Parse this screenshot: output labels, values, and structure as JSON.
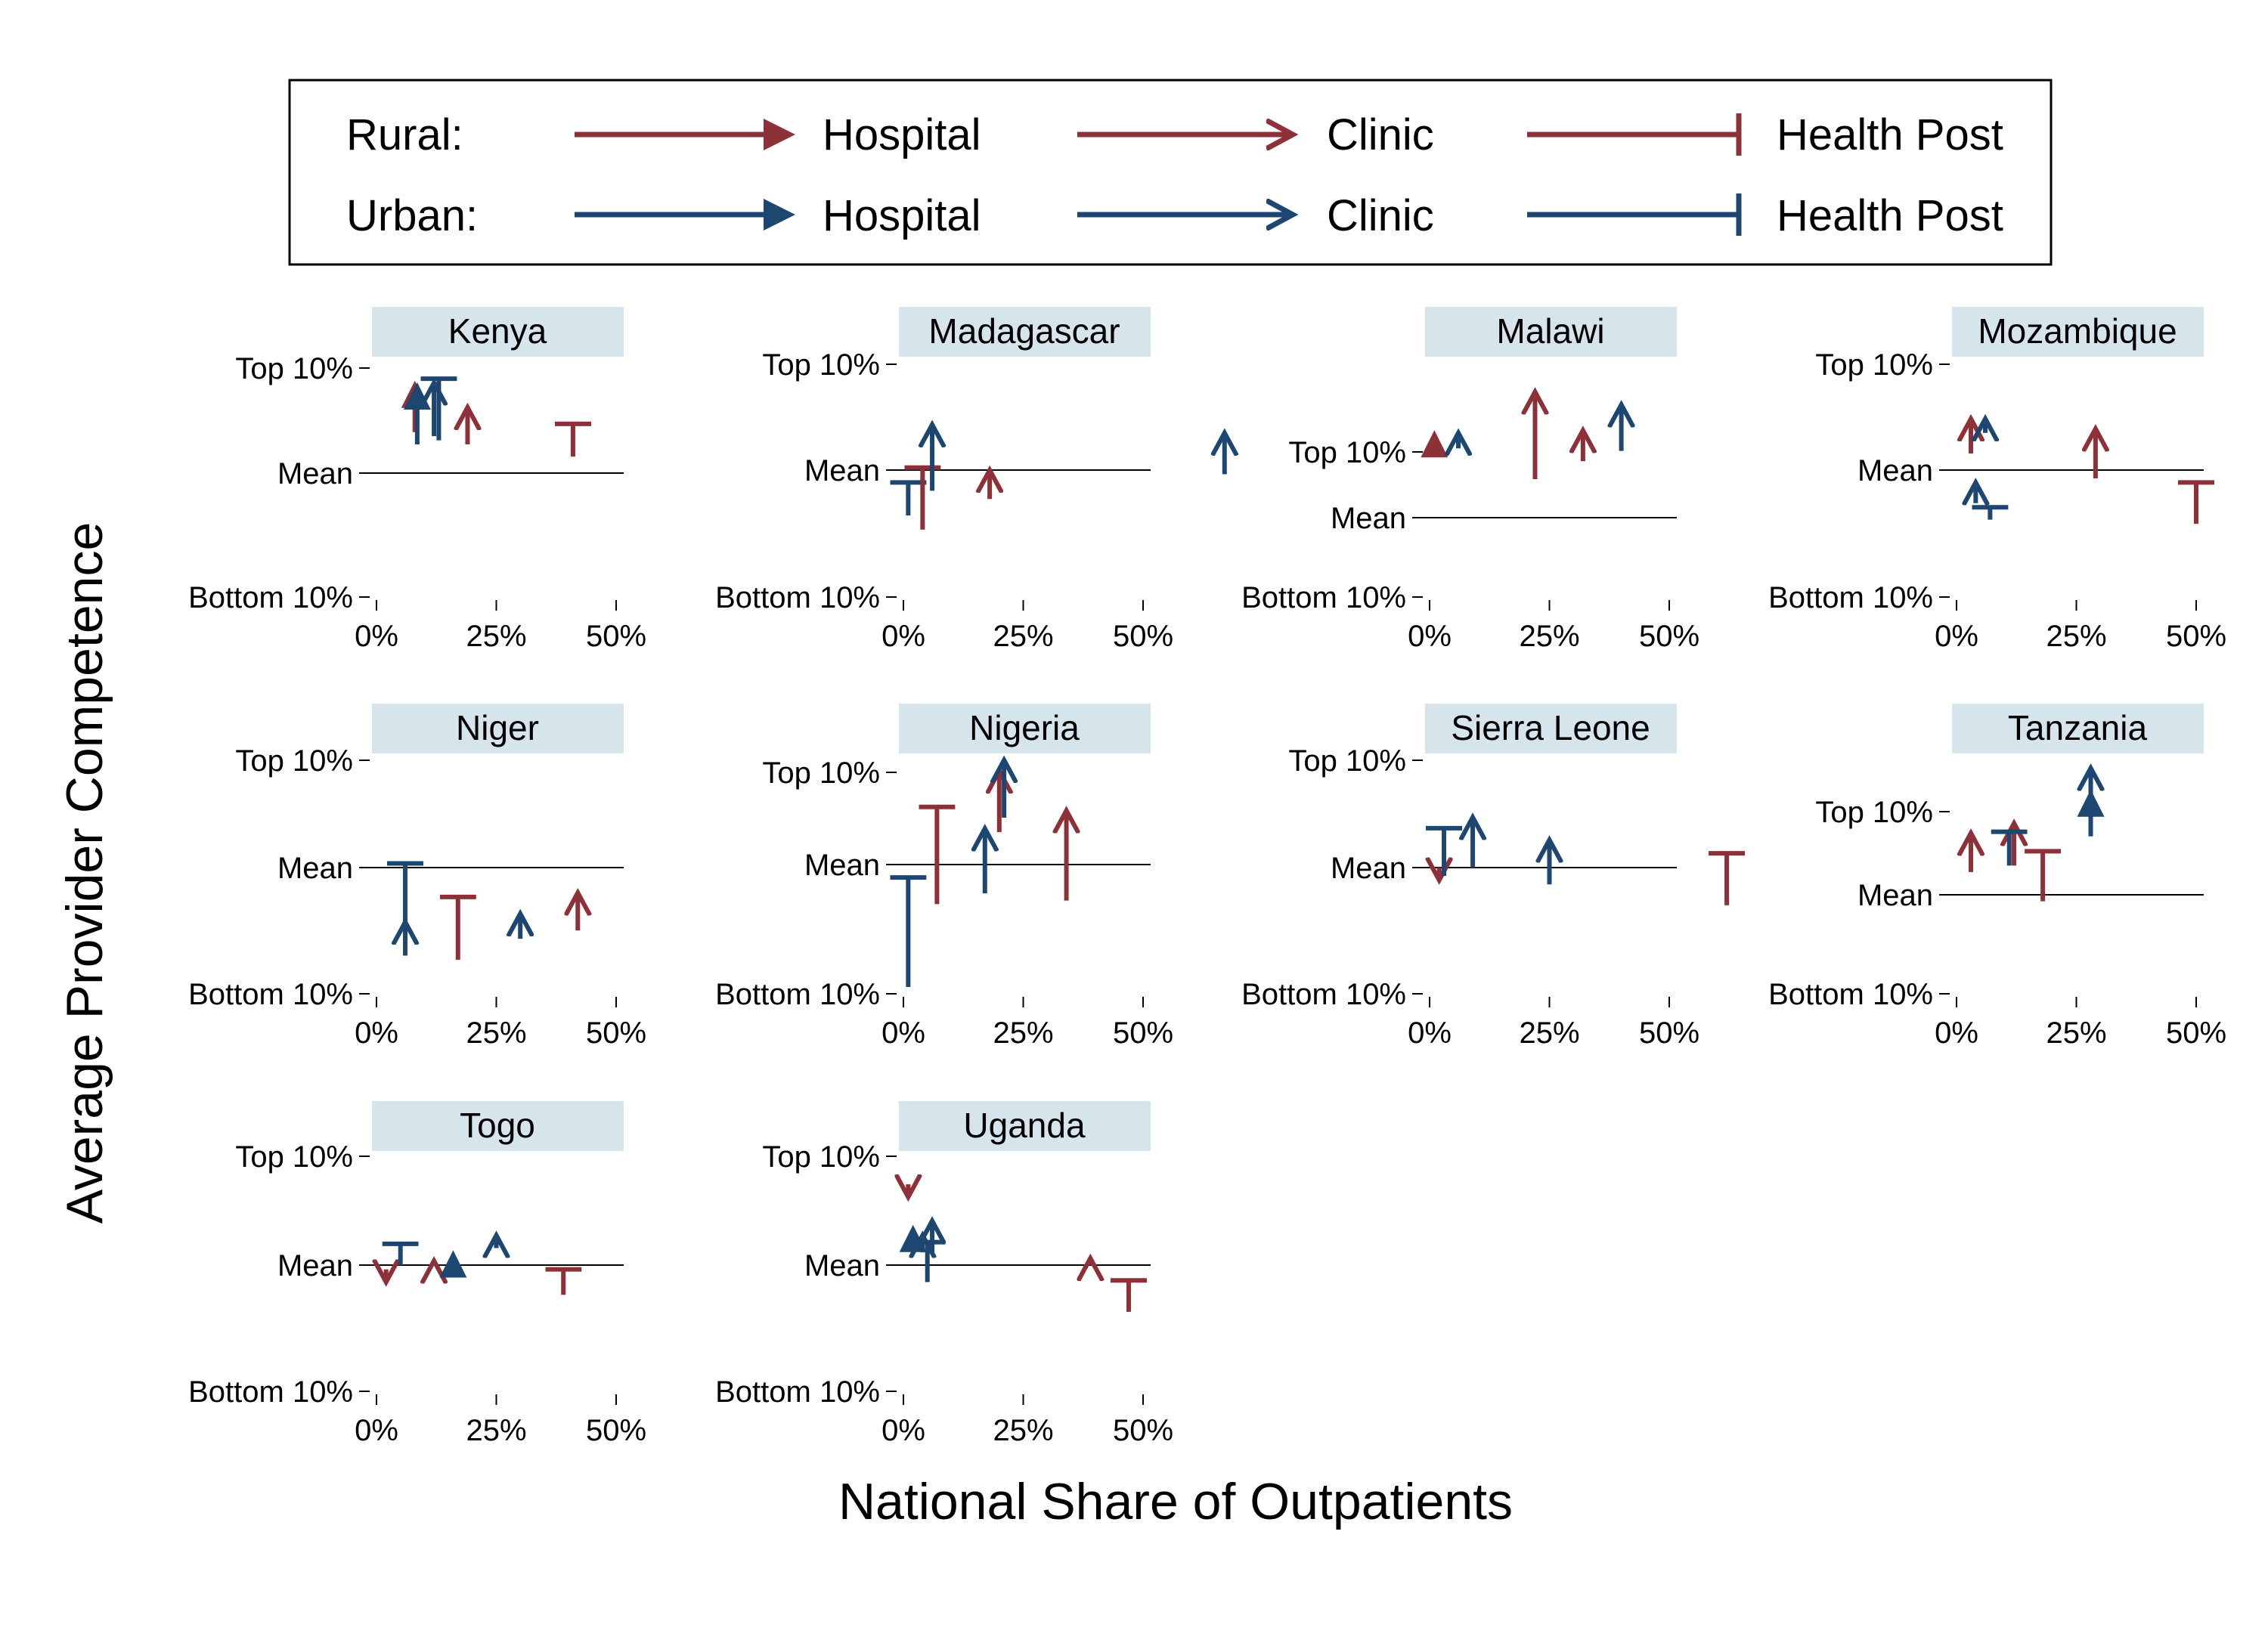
{
  "colors": {
    "rural": "#8e3038",
    "urban": "#1d4670",
    "strip": "#d6e4eb",
    "axis": "#000000"
  },
  "legend": {
    "row_labels": [
      "Rural:",
      "Urban:"
    ],
    "types": [
      "Hospital",
      "Clinic",
      "Health Post"
    ]
  },
  "chart_data": {
    "type": "arrow",
    "xlabel": "National Share of Outpatients",
    "ylabel": "Average Provider Competence",
    "xlim": [
      0,
      50
    ],
    "x_ticks": [
      0,
      25,
      50
    ],
    "x_tick_labels": [
      "0%",
      "25%",
      "50%"
    ],
    "y_scale_note": "standardized competence; Mean = 0",
    "panels": [
      {
        "country": "Kenya",
        "y_ticks": [
          {
            "label": "Top 10%",
            "value": 1.28
          },
          {
            "label": "Mean",
            "value": 0
          },
          {
            "label": "Bottom 10%",
            "value": -1.28
          }
        ],
        "arrows": [
          {
            "area": "Rural",
            "type": "Hospital",
            "x": 8,
            "from": 0.5,
            "to": 1.07
          },
          {
            "area": "Urban",
            "type": "Hospital",
            "x": 8.5,
            "from": 0.35,
            "to": 1.05
          },
          {
            "area": "Urban",
            "type": "Clinic",
            "x": 12,
            "from": 0.45,
            "to": 1.1
          },
          {
            "area": "Urban",
            "type": "Health Post",
            "x": 13,
            "from": 0.4,
            "to": 1.15
          },
          {
            "area": "Rural",
            "type": "Clinic",
            "x": 19,
            "from": 0.35,
            "to": 0.8
          },
          {
            "area": "Rural",
            "type": "Health Post",
            "x": 41,
            "from": 0.2,
            "to": 0.6
          }
        ]
      },
      {
        "country": "Madagascar",
        "y_ticks": [
          {
            "label": "Top 10%",
            "value": 1.28
          },
          {
            "label": "Mean",
            "value": 0
          },
          {
            "label": "Bottom 10%",
            "value": -1.28
          }
        ],
        "arrows": [
          {
            "area": "Urban",
            "type": "Health Post",
            "x": 1,
            "from": -0.55,
            "to": -0.15
          },
          {
            "area": "Rural",
            "type": "Health Post",
            "x": 4,
            "from": -0.72,
            "to": 0.03
          },
          {
            "area": "Urban",
            "type": "Clinic",
            "x": 6,
            "from": -0.25,
            "to": 0.55
          },
          {
            "area": "Rural",
            "type": "Clinic",
            "x": 18,
            "from": -0.35,
            "to": 0.0
          },
          {
            "area": "Urban",
            "type": "Clinic",
            "x": 67,
            "from": -0.05,
            "to": 0.45
          }
        ]
      },
      {
        "country": "Malawi",
        "y_ticks": [
          {
            "label": "Top 10%",
            "value": 1.28
          },
          {
            "label": "Mean",
            "value": 0
          },
          {
            "label": "Bottom 10%",
            "value": -1.28
          }
        ],
        "arrows": [
          {
            "area": "Rural",
            "type": "Hospital",
            "x": 1,
            "from": 1.6,
            "to": 1.6
          },
          {
            "area": "Urban",
            "type": "Clinic",
            "x": 6,
            "from": 1.35,
            "to": 1.65
          },
          {
            "area": "Rural",
            "type": "Clinic",
            "x": 22,
            "from": 0.75,
            "to": 2.45
          },
          {
            "area": "Rural",
            "type": "Clinic",
            "x": 32,
            "from": 1.1,
            "to": 1.7
          },
          {
            "area": "Urban",
            "type": "Clinic",
            "x": 40,
            "from": 1.3,
            "to": 2.2
          }
        ]
      },
      {
        "country": "Mozambique",
        "y_ticks": [
          {
            "label": "Top 10%",
            "value": 1.28
          },
          {
            "label": "Mean",
            "value": 0
          },
          {
            "label": "Bottom 10%",
            "value": -1.28
          }
        ],
        "arrows": [
          {
            "area": "Rural",
            "type": "Clinic",
            "x": 3,
            "from": 0.2,
            "to": 0.62
          },
          {
            "area": "Urban",
            "type": "Clinic",
            "x": 6,
            "from": 0.45,
            "to": 0.62
          },
          {
            "area": "Urban",
            "type": "Clinic",
            "x": 4,
            "from": -0.4,
            "to": -0.15
          },
          {
            "area": "Urban",
            "type": "Health Post",
            "x": 7,
            "from": -0.6,
            "to": -0.45
          },
          {
            "area": "Rural",
            "type": "Clinic",
            "x": 29,
            "from": -0.1,
            "to": 0.5
          },
          {
            "area": "Rural",
            "type": "Health Post",
            "x": 50,
            "from": -0.65,
            "to": -0.15
          }
        ]
      },
      {
        "country": "Niger",
        "y_ticks": [
          {
            "label": "Top 10%",
            "value": 1.28
          },
          {
            "label": "Mean",
            "value": 0
          },
          {
            "label": "Bottom 10%",
            "value": -1.28
          }
        ],
        "arrows": [
          {
            "area": "Urban",
            "type": "Health Post",
            "x": 6,
            "from": -0.65,
            "to": 0.05
          },
          {
            "area": "Urban",
            "type": "Clinic",
            "x": 6,
            "from": -1.05,
            "to": -0.65
          },
          {
            "area": "Rural",
            "type": "Health Post",
            "x": 17,
            "from": -1.1,
            "to": -0.35
          },
          {
            "area": "Urban",
            "type": "Clinic",
            "x": 30,
            "from": -0.85,
            "to": -0.55
          },
          {
            "area": "Rural",
            "type": "Clinic",
            "x": 42,
            "from": -0.75,
            "to": -0.3
          }
        ]
      },
      {
        "country": "Nigeria",
        "y_ticks": [
          {
            "label": "Top 10%",
            "value": 1.28
          },
          {
            "label": "Mean",
            "value": 0
          },
          {
            "label": "Bottom 10%",
            "value": -1.28
          }
        ],
        "arrows": [
          {
            "area": "Urban",
            "type": "Health Post",
            "x": 1,
            "from": -1.7,
            "to": -0.18
          },
          {
            "area": "Rural",
            "type": "Health Post",
            "x": 7,
            "from": -0.55,
            "to": 0.8
          },
          {
            "area": "Urban",
            "type": "Clinic",
            "x": 17,
            "from": -0.4,
            "to": 0.5
          },
          {
            "area": "Rural",
            "type": "Clinic",
            "x": 20,
            "from": 0.45,
            "to": 1.3
          },
          {
            "area": "Urban",
            "type": "Clinic",
            "x": 21,
            "from": 0.65,
            "to": 1.45
          },
          {
            "area": "Rural",
            "type": "Clinic",
            "x": 34,
            "from": -0.5,
            "to": 0.75
          }
        ]
      },
      {
        "country": "Sierra Leone",
        "y_ticks": [
          {
            "label": "Top 10%",
            "value": 1.28
          },
          {
            "label": "Mean",
            "value": 0
          },
          {
            "label": "Bottom 10%",
            "value": -1.28
          }
        ],
        "arrows": [
          {
            "area": "Rural",
            "type": "Clinic",
            "x": 2,
            "from": 0.0,
            "to": -0.15
          },
          {
            "area": "Urban",
            "type": "Health Post",
            "x": 3,
            "from": -0.1,
            "to": 0.47
          },
          {
            "area": "Urban",
            "type": "Clinic",
            "x": 9,
            "from": 0.0,
            "to": 0.6
          },
          {
            "area": "Urban",
            "type": "Clinic",
            "x": 25,
            "from": -0.2,
            "to": 0.33
          },
          {
            "area": "Rural",
            "type": "Health Post",
            "x": 62,
            "from": -0.45,
            "to": 0.17
          }
        ]
      },
      {
        "country": "Tanzania",
        "y_ticks": [
          {
            "label": "Top 10%",
            "value": 1.28
          },
          {
            "label": "Mean",
            "value": 0
          },
          {
            "label": "Bottom 10%",
            "value": -1.28
          }
        ],
        "arrows": [
          {
            "area": "Rural",
            "type": "Clinic",
            "x": 3,
            "from": 0.35,
            "to": 0.95
          },
          {
            "area": "Rural",
            "type": "Clinic",
            "x": 12,
            "from": 0.45,
            "to": 1.1
          },
          {
            "area": "Urban",
            "type": "Health Post",
            "x": 11,
            "from": 0.45,
            "to": 0.97
          },
          {
            "area": "Rural",
            "type": "Health Post",
            "x": 18,
            "from": -0.1,
            "to": 0.67
          },
          {
            "area": "Urban",
            "type": "Clinic",
            "x": 28,
            "from": 0.9,
            "to": 1.95
          },
          {
            "area": "Urban",
            "type": "Hospital",
            "x": 28,
            "from": 0.95,
            "to": 1.55
          }
        ]
      },
      {
        "country": "Togo",
        "y_ticks": [
          {
            "label": "Top 10%",
            "value": 1.28
          },
          {
            "label": "Mean",
            "value": 0
          },
          {
            "label": "Bottom 10%",
            "value": -1.28
          }
        ],
        "arrows": [
          {
            "area": "Rural",
            "type": "Clinic",
            "x": 2,
            "from": -0.05,
            "to": -0.2
          },
          {
            "area": "Urban",
            "type": "Health Post",
            "x": 5,
            "from": 0.0,
            "to": 0.25
          },
          {
            "area": "Rural",
            "type": "Clinic",
            "x": 12,
            "from": 0.0,
            "to": 0.05
          },
          {
            "area": "Urban",
            "type": "Hospital",
            "x": 16,
            "from": 0.0,
            "to": 0.12
          },
          {
            "area": "Urban",
            "type": "Clinic",
            "x": 25,
            "from": 0.2,
            "to": 0.35
          },
          {
            "area": "Rural",
            "type": "Health Post",
            "x": 39,
            "from": -0.35,
            "to": -0.05
          }
        ]
      },
      {
        "country": "Uganda",
        "y_ticks": [
          {
            "label": "Top 10%",
            "value": 1.28
          },
          {
            "label": "Mean",
            "value": 0
          },
          {
            "label": "Bottom 10%",
            "value": -1.28
          }
        ],
        "arrows": [
          {
            "area": "Rural",
            "type": "Clinic",
            "x": 1,
            "from": 0.95,
            "to": 0.8
          },
          {
            "area": "Urban",
            "type": "Hospital",
            "x": 2,
            "from": 0.2,
            "to": 0.42
          },
          {
            "area": "Urban",
            "type": "Clinic",
            "x": 4,
            "from": 0.15,
            "to": 0.35
          },
          {
            "area": "Urban",
            "type": "Health Post",
            "x": 5,
            "from": -0.2,
            "to": 0.27
          },
          {
            "area": "Urban",
            "type": "Clinic",
            "x": 6,
            "from": 0.15,
            "to": 0.52
          },
          {
            "area": "Rural",
            "type": "Clinic",
            "x": 39,
            "from": 0.0,
            "to": 0.08
          },
          {
            "area": "Rural",
            "type": "Health Post",
            "x": 47,
            "from": -0.55,
            "to": -0.18
          }
        ]
      }
    ]
  }
}
